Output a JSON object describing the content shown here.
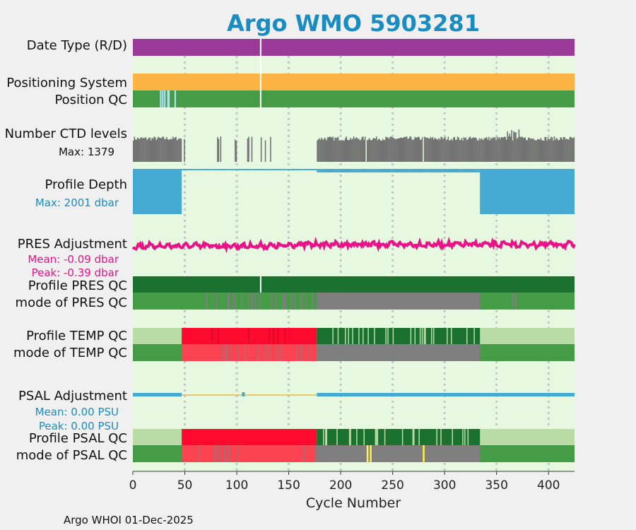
{
  "title": "Argo WMO 5903281",
  "footer": "Argo WHOI 01-Dec-2025",
  "colors": {
    "background": "#f0f0f0",
    "plot_bg": "#e6f9e0",
    "title": "#1a8cc0",
    "date_type": "#9b3a99",
    "positioning": "#fbb443",
    "qc_good": "#469b47",
    "qc_dark": "#1b7230",
    "qc_bad": "#fe0a2e",
    "qc_bad_mode": "#fc4351",
    "qc_gray": "#7f7f7f",
    "qc_light": "#b9dca6",
    "ctd": "#737373",
    "depth": "#44a9d3",
    "pres_adj": "#ea1288",
    "psal_adj": "#44a9d3",
    "psal_adj_minor": "#e8b74f",
    "pos_qc_missing": "#aadff4",
    "yellow_qc": "#fff448",
    "grid": "#c5c5c5"
  },
  "chart_data": {
    "type": "bar",
    "xlabel": "Cycle Number",
    "xlim": [
      0,
      425
    ],
    "x_ticks": [
      0,
      50,
      100,
      150,
      200,
      250,
      300,
      350,
      400
    ],
    "gaps": [
      123
    ],
    "rows": {
      "date_type": {
        "label": "Date Type (R/D)"
      },
      "positioning": {
        "label": "Positioning System"
      },
      "position_qc": {
        "label": "Position QC",
        "missing_cycles": [
          26,
          28,
          30,
          33,
          34,
          40
        ]
      },
      "ctd_levels": {
        "label": "Number CTD levels",
        "stat": "Max: 1379"
      },
      "profile_depth": {
        "label": "Profile Depth",
        "stat": "Max: 2001 dbar",
        "deep_ranges": [
          [
            0,
            47
          ],
          [
            334,
            425
          ]
        ]
      },
      "pres_adjustment": {
        "label": "PRES Adjustment",
        "mean": "Mean: -0.09 dbar",
        "peak": "Peak: -0.39 dbar"
      },
      "profile_pres_qc": {
        "label": "Profile PRES QC"
      },
      "mode_pres_qc": {
        "label": "mode of PRES QC",
        "gray_ranges": [
          [
            177,
            334
          ]
        ]
      },
      "profile_temp_qc": {
        "label": "Profile TEMP QC",
        "bad_ranges": [
          [
            47,
            177
          ]
        ],
        "good_ranges": [
          [
            177,
            334
          ]
        ]
      },
      "mode_temp_qc": {
        "label": "mode of TEMP QC",
        "bad_ranges": [
          [
            47,
            177
          ]
        ],
        "gray_ranges": [
          [
            177,
            334
          ]
        ]
      },
      "psal_adjustment": {
        "label": "PSAL Adjustment",
        "mean": "Mean: 0.00 PSU",
        "peak": "Peak: 0.00 PSU"
      },
      "profile_psal_qc": {
        "label": "Profile PSAL QC",
        "bad_ranges": [
          [
            47,
            177
          ]
        ],
        "good_ranges": [
          [
            177,
            334
          ]
        ]
      },
      "mode_psal_qc": {
        "label": "mode of PSAL QC",
        "bad_ranges": [
          [
            47,
            177
          ]
        ],
        "gray_ranges": [
          [
            177,
            334
          ]
        ],
        "yellow_cycles": [
          225,
          228,
          279
        ]
      }
    }
  }
}
